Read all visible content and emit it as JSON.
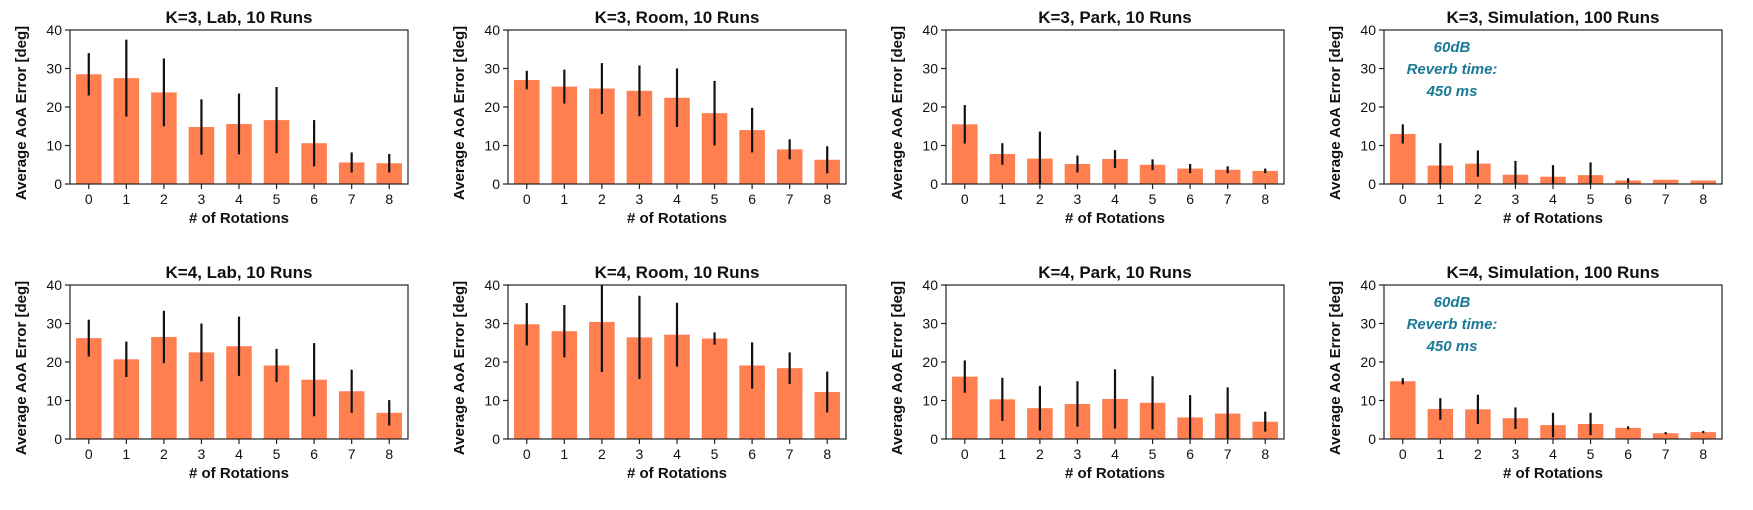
{
  "colors": {
    "bar": "#ff7f50",
    "error": "#111111",
    "note": "#1a7a95"
  },
  "chart_data": [
    {
      "type": "bar",
      "title": "K=3, Lab, 10 Runs",
      "xlabel": "# of Rotations",
      "ylabel": "Average AoA Error [deg]",
      "categories": [
        "0",
        "1",
        "2",
        "3",
        "4",
        "5",
        "6",
        "7",
        "8"
      ],
      "ylim": [
        0,
        40
      ],
      "yticks": [
        "0",
        "10",
        "20",
        "30",
        "40"
      ],
      "values": [
        28.5,
        27.5,
        23.8,
        14.8,
        15.6,
        16.6,
        10.6,
        5.6,
        5.4
      ],
      "errors": [
        5.5,
        10.0,
        8.8,
        7.2,
        7.9,
        8.6,
        6.0,
        2.6,
        2.4
      ],
      "annotation": []
    },
    {
      "type": "bar",
      "title": "K=3, Room, 10 Runs",
      "xlabel": "# of Rotations",
      "ylabel": "Average AoA Error [deg]",
      "categories": [
        "0",
        "1",
        "2",
        "3",
        "4",
        "5",
        "6",
        "7",
        "8"
      ],
      "ylim": [
        0,
        40
      ],
      "yticks": [
        "0",
        "10",
        "20",
        "30",
        "40"
      ],
      "values": [
        27.0,
        25.3,
        24.8,
        24.2,
        22.4,
        18.4,
        14.0,
        9.0,
        6.3
      ],
      "errors": [
        2.4,
        4.4,
        6.6,
        6.6,
        7.6,
        8.4,
        5.8,
        2.6,
        3.5
      ],
      "annotation": []
    },
    {
      "type": "bar",
      "title": "K=3, Park, 10 Runs",
      "xlabel": "# of Rotations",
      "ylabel": "Average AoA Error [deg]",
      "categories": [
        "0",
        "1",
        "2",
        "3",
        "4",
        "5",
        "6",
        "7",
        "8"
      ],
      "ylim": [
        0,
        40
      ],
      "yticks": [
        "0",
        "10",
        "20",
        "30",
        "40"
      ],
      "values": [
        15.5,
        7.8,
        6.6,
        5.2,
        6.5,
        5.0,
        4.0,
        3.7,
        3.4
      ],
      "errors": [
        5.0,
        2.8,
        7.0,
        2.2,
        2.3,
        1.4,
        1.2,
        0.9,
        0.6
      ],
      "annotation": []
    },
    {
      "type": "bar",
      "title": "K=3, Simulation, 100 Runs",
      "xlabel": "# of Rotations",
      "ylabel": "Average AoA Error [deg]",
      "categories": [
        "0",
        "1",
        "2",
        "3",
        "4",
        "5",
        "6",
        "7",
        "8"
      ],
      "ylim": [
        0,
        40
      ],
      "yticks": [
        "0",
        "10",
        "20",
        "30",
        "40"
      ],
      "values": [
        13.0,
        4.8,
        5.3,
        2.4,
        1.9,
        2.3,
        0.9,
        1.1,
        0.9
      ],
      "errors": [
        2.5,
        5.8,
        3.4,
        3.6,
        3.0,
        3.3,
        0.6,
        0.0,
        0.0
      ],
      "annotation": [
        "60dB",
        "Reverb time:",
        "450 ms"
      ]
    },
    {
      "type": "bar",
      "title": "K=4, Lab, 10 Runs",
      "xlabel": "# of Rotations",
      "ylabel": "Average AoA Error [deg]",
      "categories": [
        "0",
        "1",
        "2",
        "3",
        "4",
        "5",
        "6",
        "7",
        "8"
      ],
      "ylim": [
        0,
        40
      ],
      "yticks": [
        "0",
        "10",
        "20",
        "30",
        "40"
      ],
      "values": [
        26.2,
        20.7,
        26.5,
        22.5,
        24.1,
        19.1,
        15.4,
        12.4,
        6.8
      ],
      "errors": [
        4.8,
        4.6,
        6.8,
        7.5,
        7.7,
        4.3,
        9.5,
        5.6,
        3.3
      ],
      "annotation": []
    },
    {
      "type": "bar",
      "title": "K=4, Room, 10 Runs",
      "xlabel": "# of Rotations",
      "ylabel": "Average AoA Error [deg]",
      "categories": [
        "0",
        "1",
        "2",
        "3",
        "4",
        "5",
        "6",
        "7",
        "8"
      ],
      "ylim": [
        0,
        40
      ],
      "yticks": [
        "0",
        "10",
        "20",
        "30",
        "40"
      ],
      "values": [
        29.8,
        28.0,
        30.4,
        26.4,
        27.1,
        26.1,
        19.1,
        18.4,
        12.2
      ],
      "errors": [
        5.5,
        6.8,
        13.0,
        10.8,
        8.3,
        1.6,
        6.0,
        4.1,
        5.3
      ],
      "annotation": []
    },
    {
      "type": "bar",
      "title": "K=4, Park, 10 Runs",
      "xlabel": "# of Rotations",
      "ylabel": "Average AoA Error [deg]",
      "categories": [
        "0",
        "1",
        "2",
        "3",
        "4",
        "5",
        "6",
        "7",
        "8"
      ],
      "ylim": [
        0,
        40
      ],
      "yticks": [
        "0",
        "10",
        "20",
        "30",
        "40"
      ],
      "values": [
        16.2,
        10.3,
        8.0,
        9.1,
        10.4,
        9.4,
        5.6,
        6.6,
        4.5
      ],
      "errors": [
        4.2,
        5.6,
        5.8,
        5.9,
        7.7,
        6.9,
        5.8,
        6.8,
        2.6
      ],
      "annotation": []
    },
    {
      "type": "bar",
      "title": "K=4, Simulation, 100 Runs",
      "xlabel": "# of Rotations",
      "ylabel": "Average AoA Error [deg]",
      "categories": [
        "0",
        "1",
        "2",
        "3",
        "4",
        "5",
        "6",
        "7",
        "8"
      ],
      "ylim": [
        0,
        40
      ],
      "yticks": [
        "0",
        "10",
        "20",
        "30",
        "40"
      ],
      "values": [
        15.0,
        7.8,
        7.7,
        5.4,
        3.6,
        3.9,
        2.9,
        1.5,
        1.8
      ],
      "errors": [
        0.8,
        2.8,
        3.8,
        2.8,
        3.2,
        2.9,
        0.4,
        0.3,
        0.3
      ],
      "annotation": [
        "60dB",
        "Reverb time:",
        "450 ms"
      ]
    }
  ]
}
